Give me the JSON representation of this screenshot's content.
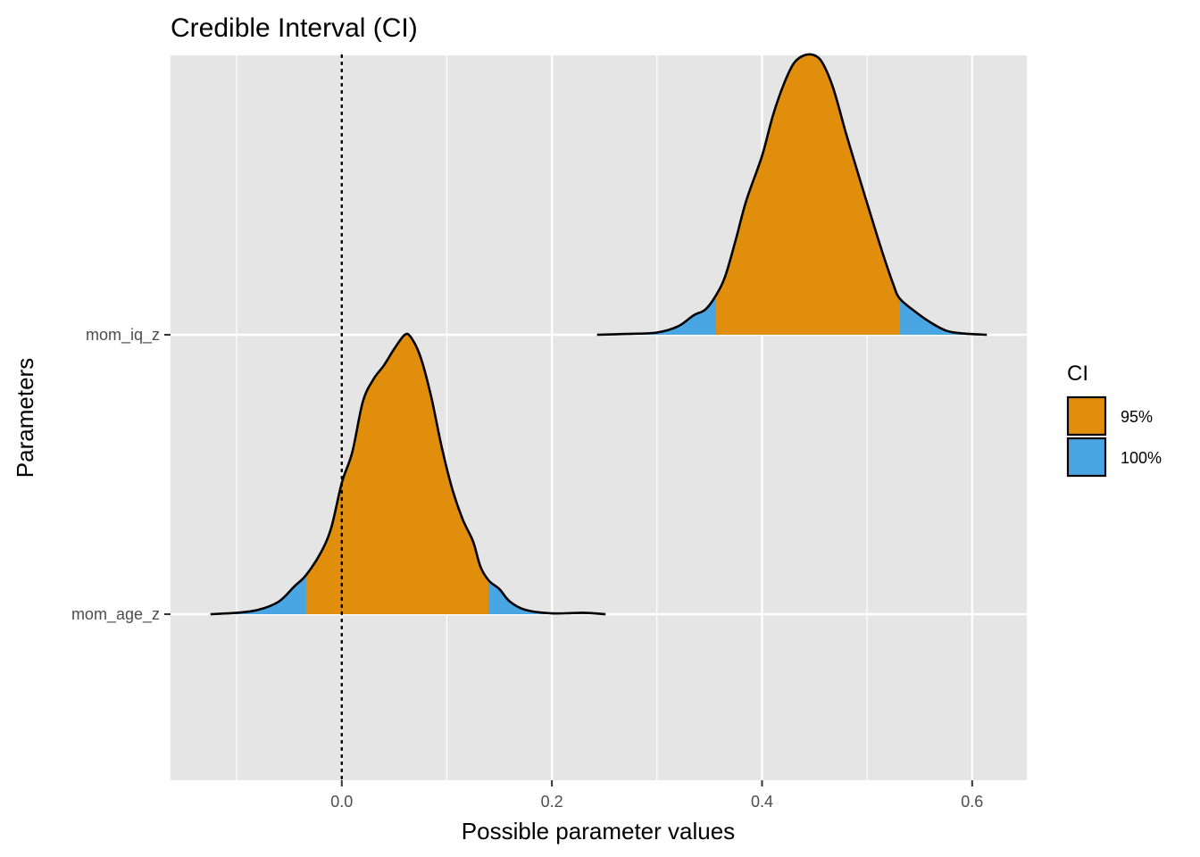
{
  "chart_data": {
    "type": "area",
    "title": "Credible Interval (CI)",
    "xlabel": "Possible parameter values",
    "ylabel": "Parameters",
    "xlim": [
      -0.163,
      0.652
    ],
    "x_ticks": [
      0.0,
      0.2,
      0.4,
      0.6
    ],
    "x_tick_labels": [
      "0.0",
      "0.2",
      "0.4",
      "0.6"
    ],
    "y_categories": [
      "mom_age_z",
      "mom_iq_z"
    ],
    "reference_line": {
      "x": 0,
      "style": "dotted"
    },
    "grid": true,
    "legend": {
      "title": "CI",
      "position": "right",
      "entries": [
        {
          "label": "95%",
          "color": "#E08E0B"
        },
        {
          "label": "100%",
          "color": "#4AA6E3"
        }
      ]
    },
    "series": [
      {
        "parameter": "mom_age_z",
        "ci95": [
          -0.034,
          0.14
        ],
        "ci100": [
          -0.125,
          0.251
        ],
        "density": [
          [
            -0.125,
            0.0
          ],
          [
            -0.1,
            0.005
          ],
          [
            -0.08,
            0.015
          ],
          [
            -0.06,
            0.045
          ],
          [
            -0.045,
            0.1
          ],
          [
            -0.034,
            0.14
          ],
          [
            -0.02,
            0.22
          ],
          [
            -0.01,
            0.31
          ],
          [
            0.0,
            0.47
          ],
          [
            0.01,
            0.58
          ],
          [
            0.02,
            0.76
          ],
          [
            0.03,
            0.84
          ],
          [
            0.04,
            0.89
          ],
          [
            0.05,
            0.95
          ],
          [
            0.06,
            1.0
          ],
          [
            0.066,
            0.99
          ],
          [
            0.075,
            0.92
          ],
          [
            0.085,
            0.78
          ],
          [
            0.095,
            0.6
          ],
          [
            0.105,
            0.45
          ],
          [
            0.115,
            0.34
          ],
          [
            0.125,
            0.26
          ],
          [
            0.132,
            0.17
          ],
          [
            0.14,
            0.12
          ],
          [
            0.15,
            0.09
          ],
          [
            0.16,
            0.045
          ],
          [
            0.175,
            0.015
          ],
          [
            0.2,
            0.003
          ],
          [
            0.23,
            0.005
          ],
          [
            0.251,
            0.0
          ]
        ]
      },
      {
        "parameter": "mom_iq_z",
        "ci95": [
          0.356,
          0.531
        ],
        "ci100": [
          0.243,
          0.614
        ],
        "density": [
          [
            0.243,
            0.0
          ],
          [
            0.27,
            0.003
          ],
          [
            0.3,
            0.008
          ],
          [
            0.32,
            0.03
          ],
          [
            0.335,
            0.07
          ],
          [
            0.346,
            0.09
          ],
          [
            0.356,
            0.14
          ],
          [
            0.365,
            0.21
          ],
          [
            0.375,
            0.34
          ],
          [
            0.385,
            0.48
          ],
          [
            0.4,
            0.64
          ],
          [
            0.41,
            0.78
          ],
          [
            0.42,
            0.89
          ],
          [
            0.43,
            0.97
          ],
          [
            0.44,
            1.0
          ],
          [
            0.45,
            1.0
          ],
          [
            0.458,
            0.97
          ],
          [
            0.468,
            0.88
          ],
          [
            0.48,
            0.72
          ],
          [
            0.492,
            0.57
          ],
          [
            0.505,
            0.41
          ],
          [
            0.515,
            0.29
          ],
          [
            0.525,
            0.18
          ],
          [
            0.531,
            0.13
          ],
          [
            0.545,
            0.085
          ],
          [
            0.56,
            0.045
          ],
          [
            0.575,
            0.015
          ],
          [
            0.59,
            0.005
          ],
          [
            0.614,
            0.0
          ]
        ]
      }
    ]
  }
}
